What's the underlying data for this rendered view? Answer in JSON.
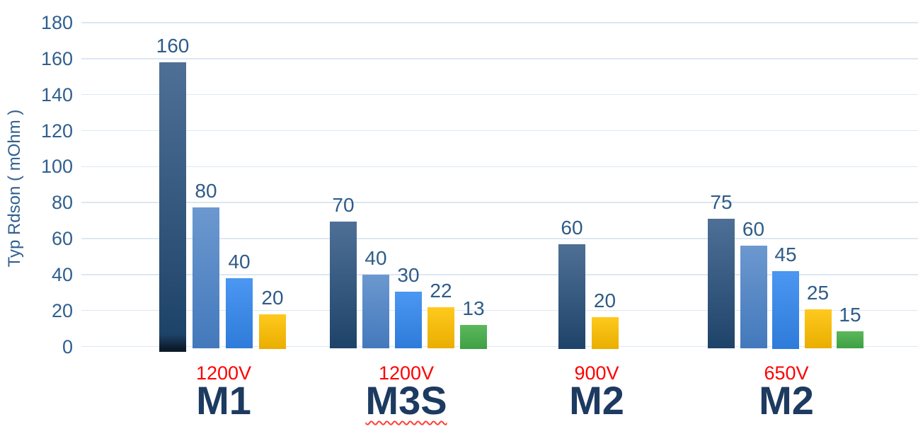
{
  "chart_data": {
    "type": "bar",
    "title": "",
    "ylabel": "Typ Rdson ( mOhm )",
    "xlabel": "",
    "ylim": [
      0,
      180
    ],
    "ytick_interval": 20,
    "yticks": [
      180,
      160,
      140,
      120,
      100,
      80,
      60,
      40,
      20,
      0
    ],
    "grid": "horizontal",
    "legend": "none",
    "groups": [
      {
        "name": "M1",
        "voltage": "1200V",
        "spellcheck_squiggle": false,
        "bars": [
          {
            "value": 160,
            "label": "160",
            "series": "dark-navy-blue",
            "drawn_height": 158,
            "overhang_below_axis": true
          },
          {
            "value": 80,
            "label": "80",
            "series": "medium-blue",
            "drawn_height": 77.5
          },
          {
            "value": 40,
            "label": "40",
            "series": "bright-blue",
            "drawn_height": 38
          },
          {
            "value": 20,
            "label": "20",
            "series": "yellow",
            "drawn_height": 18
          }
        ]
      },
      {
        "name": "M3S",
        "voltage": "1200V",
        "spellcheck_squiggle": true,
        "bars": [
          {
            "value": 70,
            "label": "70",
            "series": "dark-navy-blue",
            "drawn_height": 69.5
          },
          {
            "value": 40,
            "label": "40",
            "series": "medium-blue",
            "drawn_height": 40
          },
          {
            "value": 30,
            "label": "30",
            "series": "bright-blue",
            "drawn_height": 30.5
          },
          {
            "value": 22,
            "label": "22",
            "series": "yellow",
            "drawn_height": 22
          },
          {
            "value": 13,
            "label": "13",
            "series": "green",
            "drawn_height": 12
          }
        ]
      },
      {
        "name": "M2",
        "voltage": "900V",
        "spellcheck_squiggle": false,
        "bars": [
          {
            "value": 60,
            "label": "60",
            "series": "dark-navy-blue",
            "drawn_height": 57
          },
          {
            "value": 20,
            "label": "20",
            "series": "yellow",
            "drawn_height": 16.5
          }
        ]
      },
      {
        "name": "M2",
        "voltage": "650V",
        "spellcheck_squiggle": false,
        "bars": [
          {
            "value": 75,
            "label": "75",
            "series": "dark-navy-blue",
            "drawn_height": 71
          },
          {
            "value": 60,
            "label": "60",
            "series": "medium-blue",
            "drawn_height": 56
          },
          {
            "value": 45,
            "label": "45",
            "series": "bright-blue",
            "drawn_height": 42
          },
          {
            "value": 25,
            "label": "25",
            "series": "yellow",
            "drawn_height": 20.5
          },
          {
            "value": 15,
            "label": "15",
            "series": "green",
            "drawn_height": 8.5
          }
        ]
      }
    ],
    "colors": {
      "background": "#FFFFFF",
      "gridline": "#DCE7F3",
      "axis_text": "#31608F",
      "value_label_text": "#2F5C88",
      "voltage_label_text": "#FF0000",
      "group_name_text": "#1D3A60",
      "squiggle": "#FF4136",
      "series": {
        "dark-navy-blue": {
          "top": "#4F7096",
          "bottom": "#1E4369",
          "overhang": "#0C1A2A"
        },
        "medium-blue": {
          "top": "#6C98CF",
          "bottom": "#4379BC"
        },
        "bright-blue": {
          "top": "#4B97F2",
          "bottom": "#2E7BD9"
        },
        "yellow": {
          "top": "#FFC91E",
          "bottom": "#E9AE00"
        },
        "green": {
          "top": "#5CB85C",
          "bottom": "#3EA044"
        }
      }
    }
  }
}
